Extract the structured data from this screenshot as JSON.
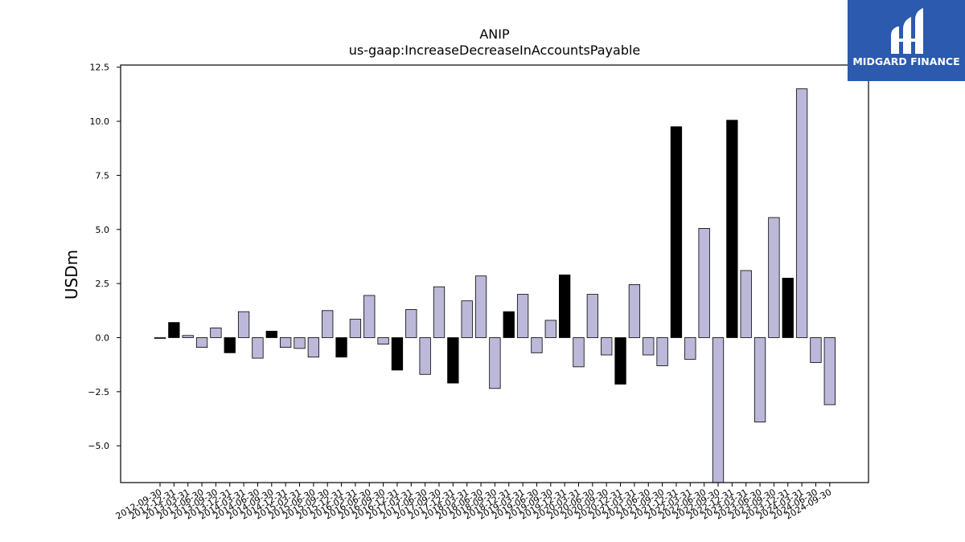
{
  "logo": {
    "text": "MIDGARD FINANCE",
    "bg_color": "#2b5aae"
  },
  "chart_data": {
    "type": "bar",
    "title": "ANIP",
    "subtitle": "us-gaap:IncreaseDecreaseInAccountsPayable",
    "xlabel": "",
    "ylabel": "USDm",
    "ylim": [
      -6.7,
      12.6
    ],
    "yticks": [
      -5.0,
      -2.5,
      0.0,
      2.5,
      5.0,
      7.5,
      10.0,
      12.5
    ],
    "grid": false,
    "colors": {
      "normal": "#bcb8d9",
      "highlight": "#000000",
      "edge": "#000000"
    },
    "categories": [
      "2012-09-30",
      "2012-12-31",
      "2013-03-31",
      "2013-06-30",
      "2013-09-30",
      "2013-12-31",
      "2014-03-31",
      "2014-06-30",
      "2014-09-30",
      "2014-12-31",
      "2015-03-31",
      "2015-06-30",
      "2015-09-30",
      "2015-12-31",
      "2016-03-31",
      "2016-06-30",
      "2016-09-30",
      "2016-12-31",
      "2017-03-31",
      "2017-06-30",
      "2017-09-30",
      "2017-12-31",
      "2018-03-31",
      "2018-06-30",
      "2018-09-30",
      "2018-12-31",
      "2019-03-31",
      "2019-06-30",
      "2019-09-30",
      "2019-12-31",
      "2020-03-31",
      "2020-06-30",
      "2020-09-30",
      "2020-12-31",
      "2021-03-31",
      "2021-06-30",
      "2021-09-30",
      "2021-12-31",
      "2022-03-31",
      "2022-06-30",
      "2022-09-30",
      "2022-12-31",
      "2023-03-31",
      "2023-06-30",
      "2023-09-30",
      "2023-12-31",
      "2024-03-31",
      "2024-06-30",
      "2024-09-30"
    ],
    "values": [
      0.0,
      0.7,
      0.1,
      -0.45,
      0.45,
      -0.7,
      1.2,
      -0.95,
      0.3,
      -0.45,
      -0.5,
      -0.9,
      1.25,
      -0.9,
      0.85,
      1.95,
      -0.3,
      -1.5,
      1.3,
      -1.7,
      2.35,
      -2.1,
      1.7,
      2.85,
      -2.35,
      1.2,
      2.0,
      -0.7,
      0.8,
      2.9,
      -1.35,
      2.0,
      -0.8,
      -2.15,
      2.45,
      -0.8,
      -1.3,
      9.75,
      -1.0,
      5.05,
      -6.7,
      10.05,
      3.1,
      -3.9,
      5.55,
      2.75,
      11.5,
      -1.15,
      -3.1
    ],
    "highlight": [
      false,
      true,
      false,
      false,
      false,
      true,
      false,
      false,
      true,
      false,
      false,
      false,
      false,
      true,
      false,
      false,
      false,
      true,
      false,
      false,
      false,
      true,
      false,
      false,
      false,
      true,
      false,
      false,
      false,
      true,
      false,
      false,
      false,
      true,
      false,
      false,
      false,
      true,
      false,
      false,
      false,
      true,
      false,
      false,
      false,
      true,
      false,
      false,
      false
    ]
  }
}
